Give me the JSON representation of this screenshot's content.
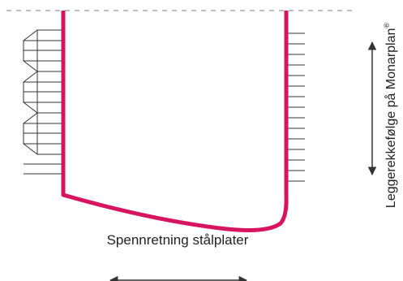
{
  "diagram": {
    "bottom_label": "Spennretning stålplater",
    "side_label": "Leggerekkefølge på Monarplan",
    "side_label_mark": "®"
  },
  "colors": {
    "outline": "#d6145f",
    "lines": "#333333",
    "dashed": "#999999",
    "text": "#222222"
  },
  "icons": {
    "bottom_arrow": "double-headed-horizontal-arrow",
    "side_arrow": "double-headed-vertical-arrow"
  }
}
